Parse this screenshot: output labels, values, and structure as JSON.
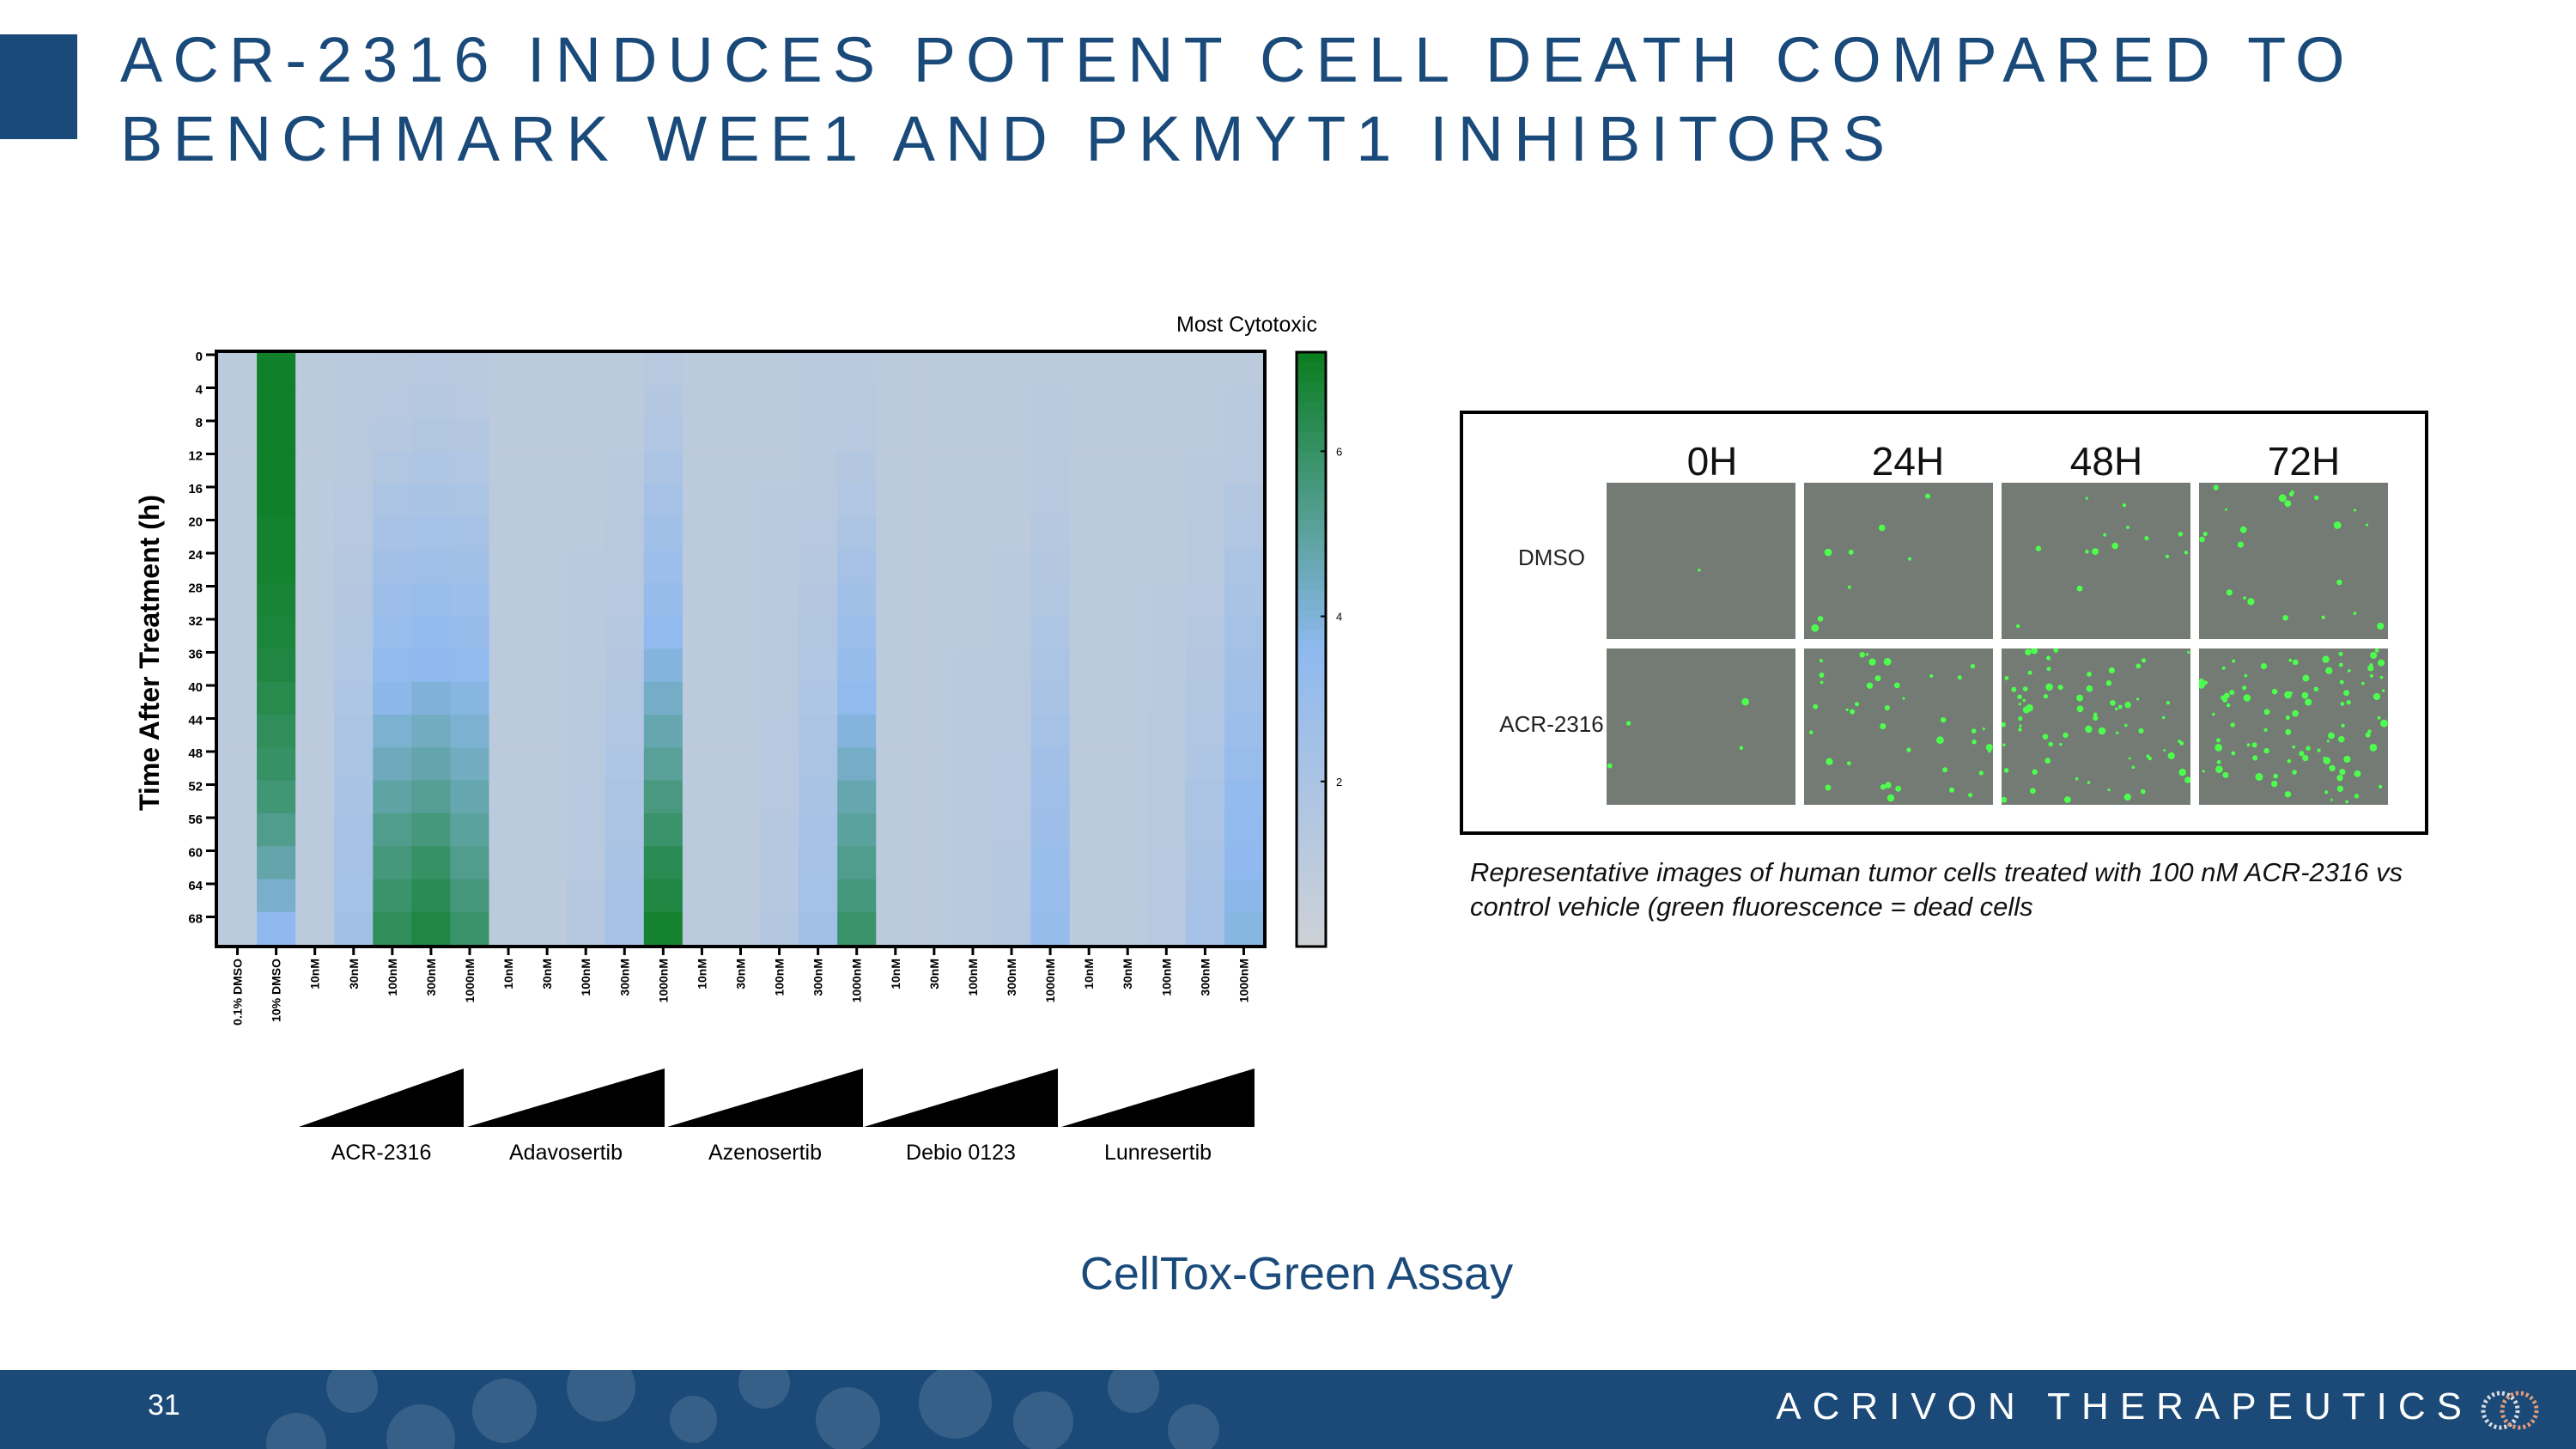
{
  "title": {
    "line1": "ACR-2316 INDUCES POTENT CELL DEATH COMPARED TO",
    "line2": "BENCHMARK WEE1 AND PKMYT1 INHIBITORS"
  },
  "chart_data": {
    "type": "heatmap",
    "title": "",
    "colorbar_label": "Most Cytotoxic",
    "ylabel": "Time After  Treatment (h)",
    "y_ticks": [
      "0",
      "4",
      "8",
      "12",
      "16",
      "20",
      "24",
      "28",
      "32",
      "36",
      "40",
      "44",
      "48",
      "52",
      "56",
      "60",
      "64",
      "68"
    ],
    "colorbar_ticks": [
      "6",
      "4",
      "2"
    ],
    "colorbar_range": [
      0,
      7.2
    ],
    "colors": {
      "low": "#cdd1d6",
      "mid": "#8fb9ef",
      "high": "#0a7d1f"
    },
    "x_labels": [
      "0.1% DMSO",
      "10% DMSO",
      "10nM",
      "30nM",
      "100nM",
      "300nM",
      "1000nM",
      "10nM",
      "30nM",
      "100nM",
      "300nM",
      "1000nM",
      "10nM",
      "30nM",
      "100nM",
      "300nM",
      "1000nM",
      "10nM",
      "30nM",
      "100nM",
      "300nM",
      "1000nM",
      "10nM",
      "30nM",
      "100nM",
      "300nM",
      "1000nM"
    ],
    "groups": [
      "ACR-2316",
      "Adavosertib",
      "Azenosertib",
      "Debio 0123",
      "Lunresertib"
    ],
    "rows": [
      [
        1.0,
        7.0,
        1.0,
        1.1,
        1.2,
        1.3,
        1.2,
        1.0,
        1.0,
        1.0,
        1.0,
        1.3,
        1.0,
        1.0,
        1.0,
        1.1,
        1.1,
        1.0,
        1.0,
        1.0,
        1.0,
        1.0,
        1.0,
        1.0,
        1.0,
        1.0,
        1.0
      ],
      [
        1.0,
        7.0,
        1.0,
        1.1,
        1.3,
        1.4,
        1.3,
        1.0,
        1.0,
        1.0,
        1.0,
        1.5,
        1.0,
        1.0,
        1.0,
        1.1,
        1.2,
        1.0,
        1.0,
        1.0,
        1.0,
        1.1,
        1.0,
        1.0,
        1.0,
        1.0,
        1.1
      ],
      [
        1.0,
        7.0,
        1.0,
        1.2,
        1.4,
        1.6,
        1.5,
        1.0,
        1.0,
        1.0,
        1.0,
        1.7,
        1.0,
        1.0,
        1.0,
        1.1,
        1.3,
        1.0,
        1.0,
        1.0,
        1.0,
        1.1,
        1.0,
        1.0,
        1.0,
        1.0,
        1.2
      ],
      [
        1.0,
        7.0,
        1.0,
        1.2,
        1.6,
        1.8,
        1.7,
        1.0,
        1.0,
        1.0,
        1.1,
        2.0,
        1.0,
        1.0,
        1.0,
        1.2,
        1.5,
        1.0,
        1.0,
        1.0,
        1.0,
        1.2,
        1.0,
        1.0,
        1.0,
        1.1,
        1.3
      ],
      [
        1.0,
        7.0,
        1.0,
        1.3,
        1.9,
        2.1,
        2.0,
        1.0,
        1.0,
        1.0,
        1.1,
        2.3,
        1.0,
        1.0,
        1.1,
        1.2,
        1.7,
        1.0,
        1.0,
        1.0,
        1.0,
        1.3,
        1.0,
        1.0,
        1.0,
        1.1,
        1.5
      ],
      [
        1.0,
        6.9,
        1.0,
        1.3,
        2.2,
        2.4,
        2.3,
        1.0,
        1.0,
        1.0,
        1.2,
        2.6,
        1.0,
        1.0,
        1.1,
        1.3,
        2.0,
        1.0,
        1.0,
        1.0,
        1.0,
        1.4,
        1.0,
        1.0,
        1.0,
        1.2,
        1.7
      ],
      [
        1.0,
        6.9,
        1.0,
        1.4,
        2.5,
        2.7,
        2.6,
        1.0,
        1.0,
        1.1,
        1.2,
        2.9,
        1.0,
        1.0,
        1.1,
        1.4,
        2.3,
        1.0,
        1.0,
        1.0,
        1.1,
        1.5,
        1.0,
        1.0,
        1.0,
        1.2,
        1.9
      ],
      [
        1.0,
        6.8,
        1.0,
        1.5,
        2.8,
        3.0,
        2.9,
        1.0,
        1.0,
        1.1,
        1.3,
        3.2,
        1.0,
        1.0,
        1.1,
        1.5,
        2.6,
        1.0,
        1.0,
        1.0,
        1.1,
        1.6,
        1.0,
        1.0,
        1.1,
        1.3,
        2.1
      ],
      [
        1.0,
        6.7,
        1.0,
        1.6,
        3.1,
        3.3,
        3.2,
        1.0,
        1.0,
        1.1,
        1.4,
        3.5,
        1.0,
        1.0,
        1.2,
        1.6,
        2.9,
        1.0,
        1.0,
        1.0,
        1.1,
        1.8,
        1.0,
        1.0,
        1.1,
        1.4,
        2.3
      ],
      [
        1.0,
        6.6,
        1.0,
        1.7,
        3.4,
        3.6,
        3.5,
        1.0,
        1.0,
        1.1,
        1.5,
        3.9,
        1.0,
        1.0,
        1.2,
        1.7,
        3.2,
        1.0,
        1.0,
        1.1,
        1.2,
        2.0,
        1.0,
        1.0,
        1.1,
        1.5,
        2.5
      ],
      [
        1.0,
        6.4,
        1.0,
        1.8,
        3.7,
        4.0,
        3.8,
        1.0,
        1.0,
        1.2,
        1.6,
        4.3,
        1.0,
        1.0,
        1.2,
        1.8,
        3.5,
        1.0,
        1.0,
        1.1,
        1.2,
        2.1,
        1.0,
        1.0,
        1.1,
        1.6,
        2.7
      ],
      [
        1.0,
        6.2,
        1.0,
        1.9,
        4.1,
        4.4,
        4.1,
        1.0,
        1.0,
        1.2,
        1.7,
        4.7,
        1.0,
        1.0,
        1.3,
        1.9,
        3.9,
        1.0,
        1.0,
        1.1,
        1.2,
        2.3,
        1.0,
        1.0,
        1.2,
        1.7,
        2.9
      ],
      [
        1.0,
        6.0,
        1.0,
        2.0,
        4.5,
        4.8,
        4.4,
        1.0,
        1.0,
        1.2,
        1.8,
        5.1,
        1.0,
        1.0,
        1.3,
        2.0,
        4.3,
        1.0,
        1.0,
        1.1,
        1.3,
        2.5,
        1.0,
        1.0,
        1.2,
        1.8,
        3.1
      ],
      [
        1.0,
        5.7,
        1.0,
        2.1,
        4.9,
        5.2,
        4.7,
        1.0,
        1.0,
        1.3,
        1.9,
        5.5,
        1.0,
        1.0,
        1.3,
        2.1,
        4.7,
        1.0,
        1.0,
        1.1,
        1.3,
        2.7,
        1.0,
        1.0,
        1.2,
        1.9,
        3.3
      ],
      [
        1.0,
        5.3,
        1.0,
        2.2,
        5.3,
        5.6,
        5.0,
        1.0,
        1.0,
        1.3,
        2.0,
        5.9,
        1.0,
        1.0,
        1.4,
        2.2,
        5.0,
        1.0,
        1.0,
        1.2,
        1.3,
        2.8,
        1.0,
        1.0,
        1.2,
        2.0,
        3.5
      ],
      [
        1.0,
        4.8,
        1.0,
        2.3,
        5.6,
        6.0,
        5.3,
        1.0,
        1.0,
        1.3,
        2.1,
        6.3,
        1.0,
        1.0,
        1.4,
        2.3,
        5.3,
        1.0,
        1.0,
        1.2,
        1.4,
        3.0,
        1.0,
        1.0,
        1.3,
        2.1,
        3.6
      ],
      [
        1.0,
        4.2,
        1.0,
        2.4,
        5.9,
        6.3,
        5.6,
        1.0,
        1.0,
        1.4,
        2.2,
        6.6,
        1.0,
        1.0,
        1.4,
        2.4,
        5.6,
        1.0,
        1.0,
        1.2,
        1.4,
        3.1,
        1.0,
        1.0,
        1.3,
        2.2,
        3.7
      ],
      [
        1.0,
        3.6,
        1.0,
        2.5,
        6.2,
        6.6,
        5.9,
        1.0,
        1.0,
        1.4,
        2.3,
        6.9,
        1.0,
        1.0,
        1.5,
        2.5,
        5.9,
        1.0,
        1.0,
        1.2,
        1.4,
        3.2,
        1.0,
        1.0,
        1.3,
        2.3,
        3.8
      ]
    ]
  },
  "image_panel": {
    "columns": [
      "0H",
      "24H",
      "48H",
      "72H"
    ],
    "rows": [
      "DMSO",
      "ACR-2316"
    ],
    "caption": "Representative images of human tumor cells treated with 100 nM ACR-2316 vs control vehicle (green fluorescence = dead cells"
  },
  "assay_label": "CellTox-Green Assay",
  "footer": {
    "page_number": "31",
    "brand": "ACRIVON THERAPEUTICS",
    "logo_icon": "interlocking-rings-icon"
  }
}
